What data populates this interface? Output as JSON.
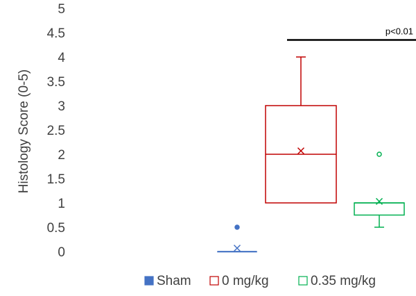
{
  "chart_data": {
    "type": "box",
    "ylabel": "Histology Score (0-5)",
    "xlabel": "",
    "ylim": [
      0,
      5
    ],
    "yticks": [
      0,
      0.5,
      1,
      1.5,
      2,
      2.5,
      3,
      3.5,
      4,
      4.5,
      5
    ],
    "ytick_labels": [
      "0",
      "0.5",
      "1",
      "1.5",
      "2",
      "2.5",
      "3",
      "3.5",
      "4",
      "4.5",
      "5"
    ],
    "grid": false,
    "legend_position": "bottom",
    "series": [
      {
        "name": "Sham",
        "color": "#4472C4",
        "min": 0,
        "q1": 0,
        "median": 0,
        "q3": 0,
        "max": 0,
        "mean": 0.07,
        "outliers": [
          0.5
        ],
        "legend_marker": "filled-square"
      },
      {
        "name": "0 mg/kg",
        "color": "#C00000",
        "min": 1,
        "q1": 1,
        "median": 2,
        "q3": 3,
        "max": 4,
        "mean": 2.07,
        "outliers": [],
        "legend_marker": "hollow-square"
      },
      {
        "name": "0.35 mg/kg",
        "color": "#00B050",
        "min": 0.5,
        "q1": 0.75,
        "median": 1,
        "q3": 1,
        "max": 1,
        "mean": 1.03,
        "outliers": [
          2
        ],
        "legend_marker": "hollow-square"
      }
    ],
    "annotations": [
      {
        "text": "p<0.01",
        "y": 4.35,
        "from_series": 1,
        "to": "right-edge"
      }
    ]
  }
}
